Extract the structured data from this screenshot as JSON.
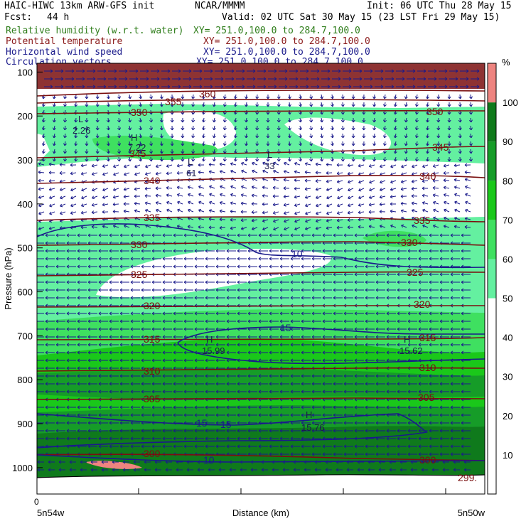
{
  "header": {
    "title": "HAIC-HIWC 13km ARW-GFS init",
    "org": "NCAR/MMMM",
    "init": "Init: 06 UTC Thu 28 May 15",
    "fcst_label": "Fcst:",
    "fcst_value": "44 h",
    "valid": "Valid: 02 UTC Sat 30 May 15 (23 LST Fri 29 May 15)"
  },
  "fields": [
    {
      "name": "Relative humidity (w.r.t. water)",
      "xy": "XY= 251.0,100.0 to 284.7,100.0",
      "color": "#2e7d1a"
    },
    {
      "name": "Potential temperature",
      "xy": "XY= 251.0,100.0 to 284.7,100.0",
      "color": "#8b1a1a"
    },
    {
      "name": "Horizontal wind speed",
      "xy": "XY= 251.0,100.0 to 284.7,100.0",
      "color": "#1a1a8b"
    },
    {
      "name": "Circulation vectors",
      "xy": "XY= 251.0,100.0 to 284.7,100.0",
      "color": "#1a1a8b"
    }
  ],
  "chart_data": {
    "type": "heatmap",
    "ylabel": "Pressure (hPa)",
    "xlabel": "Distance (km)",
    "x_start_label": "5n54w",
    "x_end_label": "5n50w",
    "x_origin_label": "0",
    "y_ticks": [
      "100",
      "200",
      "300",
      "400",
      "500",
      "600",
      "700",
      "800",
      "900",
      "1000"
    ],
    "y_scale": "linear",
    "ylim": [
      1060,
      80
    ],
    "colorbar": {
      "unit": "%",
      "labels": [
        "10",
        "20",
        "30",
        "40",
        "50",
        "60",
        "70",
        "80",
        "90",
        "100"
      ],
      "bands": [
        {
          "min": 0,
          "max": 50,
          "color": "#ffffff"
        },
        {
          "min": 50,
          "max": 60,
          "color": "#64f0a0"
        },
        {
          "min": 60,
          "max": 70,
          "color": "#3fe060"
        },
        {
          "min": 70,
          "max": 80,
          "color": "#1ac81a"
        },
        {
          "min": 80,
          "max": 90,
          "color": "#169c28"
        },
        {
          "min": 90,
          "max": 100,
          "color": "#0f7a1c"
        },
        {
          "min": 100,
          "max": 110,
          "color": "#ee8480"
        }
      ]
    },
    "theta_labels": [
      "360",
      "355",
      "350",
      "345",
      "340",
      "335",
      "330",
      "325",
      "320",
      "315",
      "310",
      "305",
      "300",
      "299."
    ],
    "wind_labels": [
      "10",
      "15"
    ],
    "extrema": [
      {
        "type": "L",
        "value": "2.26"
      },
      {
        "type": "H",
        "value": "7.22"
      },
      {
        "type": "L",
        "value": "61"
      },
      {
        "type": "L",
        "value": "33"
      },
      {
        "type": "H",
        "value": "15.99"
      },
      {
        "type": "H",
        "value": "15.62"
      },
      {
        "type": "H",
        "value": "15.76"
      }
    ]
  }
}
